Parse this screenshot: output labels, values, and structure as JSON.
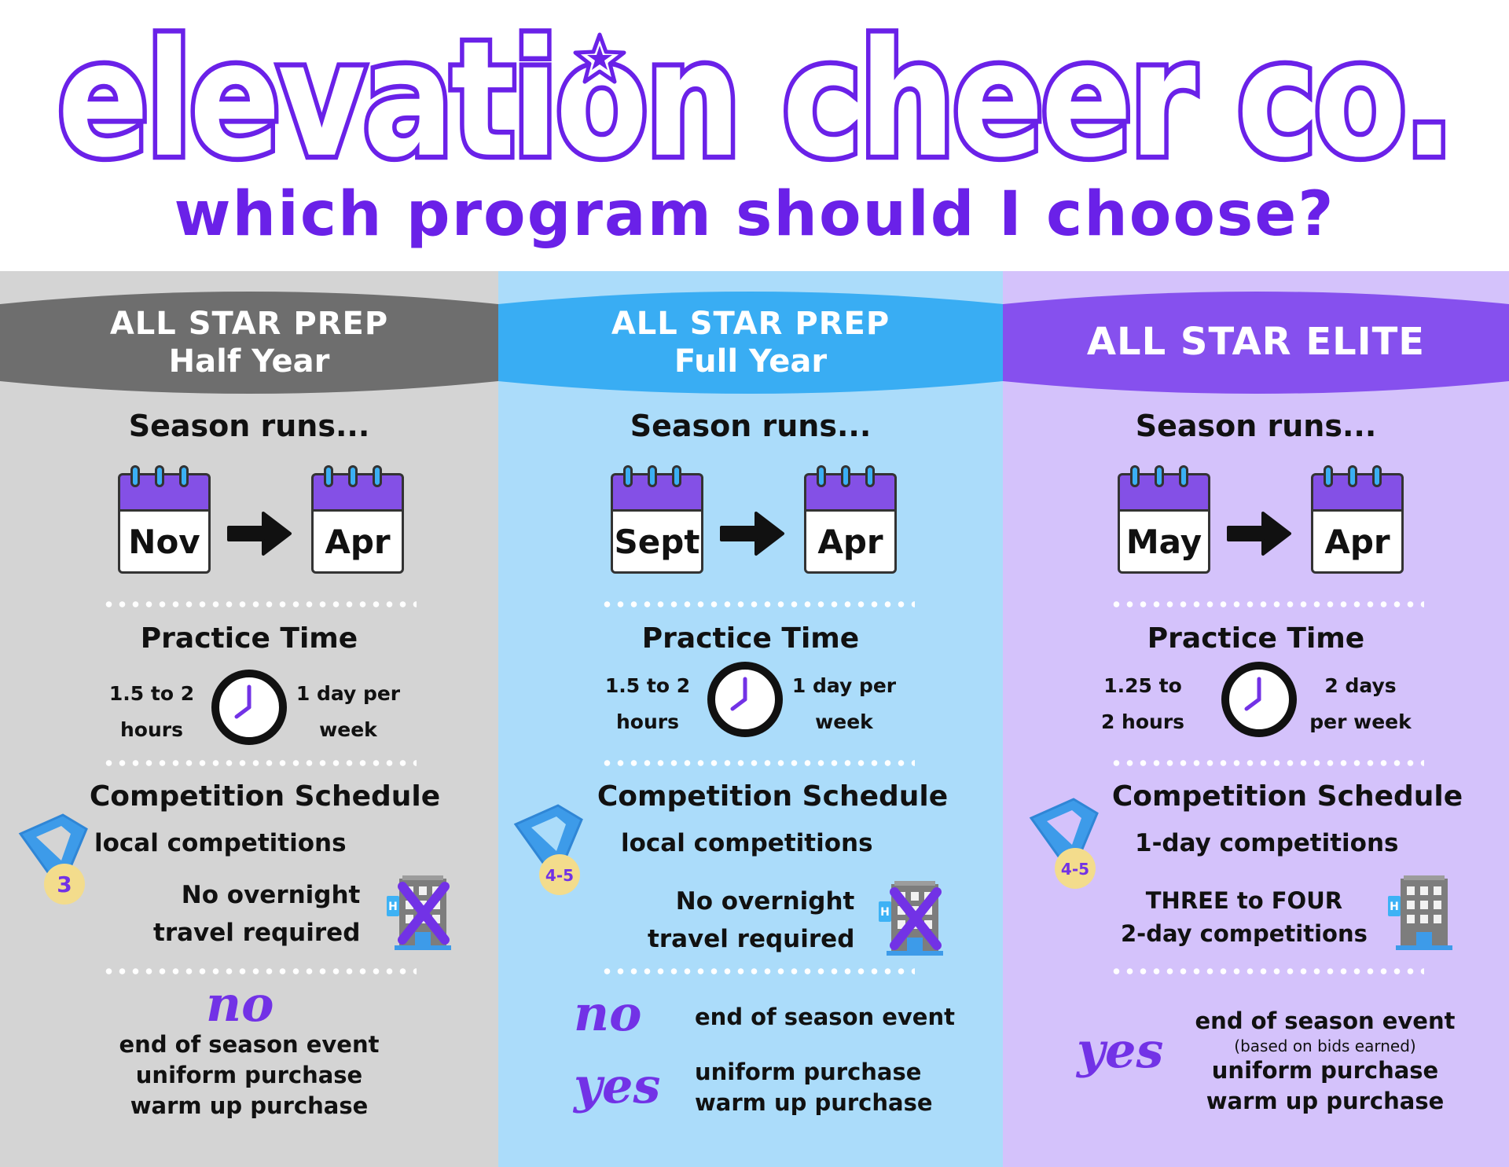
{
  "header": {
    "brand": "elevation cheer co.",
    "subtitle": "which program should I choose?"
  },
  "colors": {
    "brand_purple": "#6a21e8",
    "col1_bg": "#d4d4d4",
    "col2_bg": "#abdcfa",
    "col3_bg": "#d4c2fb",
    "banner1": "#6e6e6e",
    "banner2": "#39adf3",
    "banner3": "#8650ee"
  },
  "icons": [
    "star-icon",
    "calendar-icon",
    "arrow-right-icon",
    "clock-icon",
    "medal-icon",
    "hotel-icon",
    "cross-icon"
  ],
  "programs": [
    {
      "title_line1": "ALL STAR PREP",
      "title_line2": "Half Year",
      "season_label": "Season runs...",
      "start_month": "Nov",
      "end_month": "Apr",
      "practice_title": "Practice Time",
      "practice_hours_line1": "1.5 to 2",
      "practice_hours_line2": "hours",
      "practice_days_line1": "1 day per",
      "practice_days_line2": "week",
      "competition_title": "Competition Schedule",
      "medal_label": "3",
      "competition_line": "local competitions",
      "travel_line1": "No overnight",
      "travel_line2": "travel required",
      "hotel_crossed": true,
      "no_label": "no",
      "no_items": [
        "end of season event",
        "uniform purchase",
        "warm up purchase"
      ]
    },
    {
      "title_line1": "ALL STAR PREP",
      "title_line2": "Full Year",
      "season_label": "Season runs...",
      "start_month": "Sept",
      "end_month": "Apr",
      "practice_title": "Practice Time",
      "practice_hours_line1": "1.5 to 2",
      "practice_hours_line2": "hours",
      "practice_days_line1": "1 day per",
      "practice_days_line2": "week",
      "competition_title": "Competition Schedule",
      "medal_label": "4-5",
      "competition_line": "local competitions",
      "travel_line1": "No overnight",
      "travel_line2": "travel required",
      "hotel_crossed": true,
      "no_label": "no",
      "no_items": [
        "end of season event"
      ],
      "yes_label": "yes",
      "yes_items": [
        "uniform purchase",
        "warm up purchase"
      ]
    },
    {
      "title_line1": "ALL STAR ELITE",
      "season_label": "Season runs...",
      "start_month": "May",
      "end_month": "Apr",
      "practice_title": "Practice Time",
      "practice_hours_line1": "1.25 to",
      "practice_hours_line2": "2 hours",
      "practice_days_line1": "2 days",
      "practice_days_line2": "per week",
      "competition_title": "Competition Schedule",
      "medal_label": "4-5",
      "competition_line": "1-day competitions",
      "travel_line1": "THREE to FOUR",
      "travel_line2": "2-day competitions",
      "hotel_crossed": false,
      "yes_label": "yes",
      "yes_item_1": "end of season event",
      "yes_note": "(based on bids earned)",
      "yes_items": [
        "uniform purchase",
        "warm up purchase"
      ]
    }
  ]
}
